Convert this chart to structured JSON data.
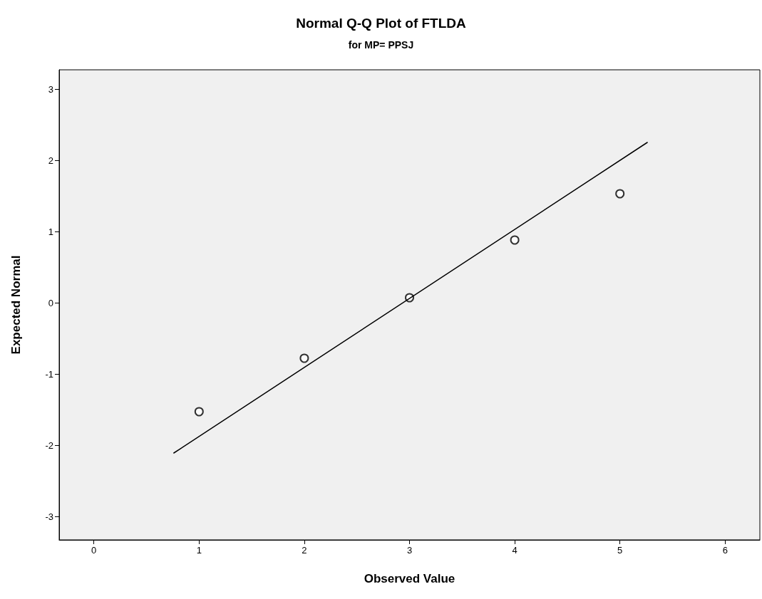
{
  "chart_data": {
    "type": "scatter",
    "title": "Normal Q-Q Plot of FTLDA",
    "subtitle": "for MP= PPSJ",
    "xlabel": "Observed Value",
    "ylabel": "Expected Normal",
    "x": [
      1,
      2,
      3,
      4,
      5
    ],
    "series": [
      {
        "color": "#000000",
        "marker": "circle",
        "values": [
          -1.53,
          -0.78,
          0.07,
          0.88,
          1.53
        ]
      },
      {
        "type": "line",
        "color": "#000000",
        "marker": "none",
        "line_style": "solid",
        "x": [
          0.76,
          5.26
        ],
        "values": [
          -2.11,
          2.25
        ]
      }
    ],
    "xlim": [
      -0.33,
      6.33
    ],
    "xticks": [
      0,
      1,
      2,
      3,
      4,
      5,
      6
    ],
    "ylim": [
      -3.33,
      3.27
    ],
    "yticks": [
      -3,
      -2,
      -1,
      0,
      1,
      2,
      3
    ],
    "grid": false
  }
}
